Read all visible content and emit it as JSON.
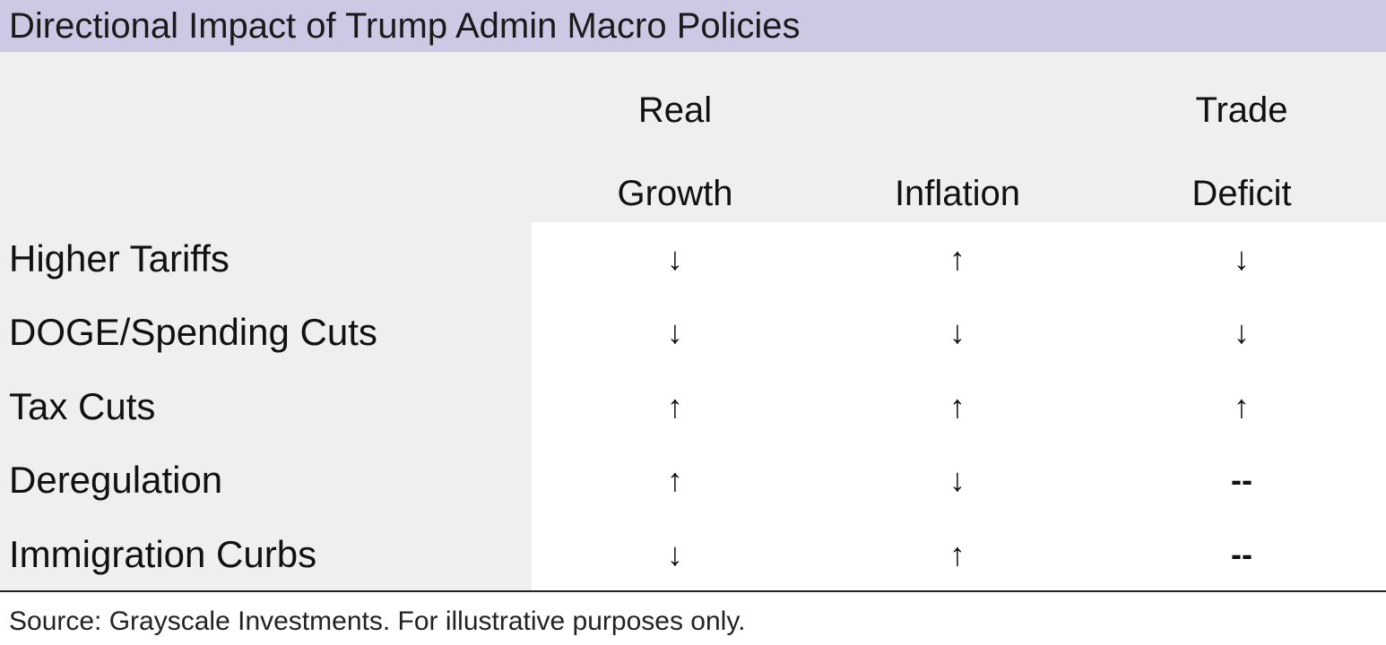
{
  "title": "Directional Impact of Trump Admin Macro Policies",
  "columns": [
    [
      "Real",
      "Growth"
    ],
    [
      "Inflation"
    ],
    [
      "Trade",
      "Deficit"
    ]
  ],
  "rows": [
    {
      "label": "Higher Tariffs",
      "cells": [
        "↓",
        "↑",
        "↓"
      ]
    },
    {
      "label": "DOGE/Spending Cuts",
      "cells": [
        "↓",
        "↓",
        "↓"
      ]
    },
    {
      "label": "Tax Cuts",
      "cells": [
        "↑",
        "↑",
        "↑"
      ]
    },
    {
      "label": "Deregulation",
      "cells": [
        "↑",
        "↓",
        "--"
      ]
    },
    {
      "label": "Immigration Curbs",
      "cells": [
        "↓",
        "↑",
        "--"
      ]
    }
  ],
  "source": "Source: Grayscale Investments. For illustrative purposes only."
}
